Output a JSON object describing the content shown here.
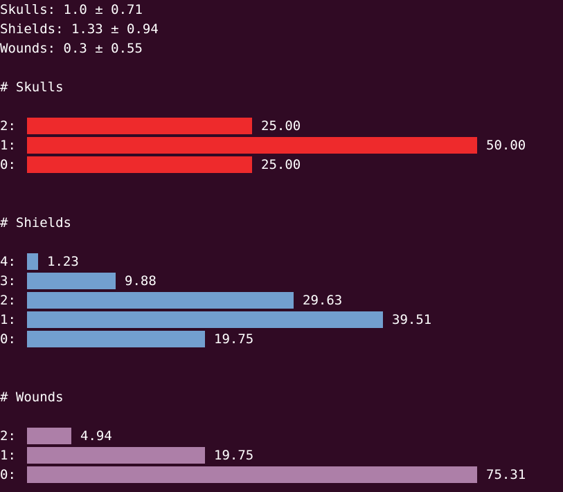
{
  "stats": [
    {
      "text": "Skulls: 1.0 ± 0.71"
    },
    {
      "text": "Shields: 1.33 ± 0.94"
    },
    {
      "text": "Wounds: 0.3 ± 0.55"
    }
  ],
  "chart_data": [
    {
      "type": "bar",
      "orientation": "horizontal",
      "title": "# Skulls",
      "color": "#ee2a2c",
      "categories": [
        "2:",
        "1:",
        "0:"
      ],
      "values": [
        25.0,
        50.0,
        25.0
      ],
      "value_labels": [
        "25.00",
        "50.00",
        "25.00"
      ]
    },
    {
      "type": "bar",
      "orientation": "horizontal",
      "title": "# Shields",
      "color": "#729fcf",
      "categories": [
        "4:",
        "3:",
        "2:",
        "1:",
        "0:"
      ],
      "values": [
        1.23,
        9.88,
        29.63,
        39.51,
        19.75
      ],
      "value_labels": [
        "1.23",
        "9.88",
        "29.63",
        "39.51",
        "19.75"
      ]
    },
    {
      "type": "bar",
      "orientation": "horizontal",
      "title": "# Wounds",
      "color": "#ad7fa8",
      "categories": [
        "2:",
        "1:",
        "0:"
      ],
      "values": [
        4.94,
        19.75,
        75.31
      ],
      "value_labels": [
        "4.94",
        "19.75",
        "75.31"
      ]
    }
  ]
}
